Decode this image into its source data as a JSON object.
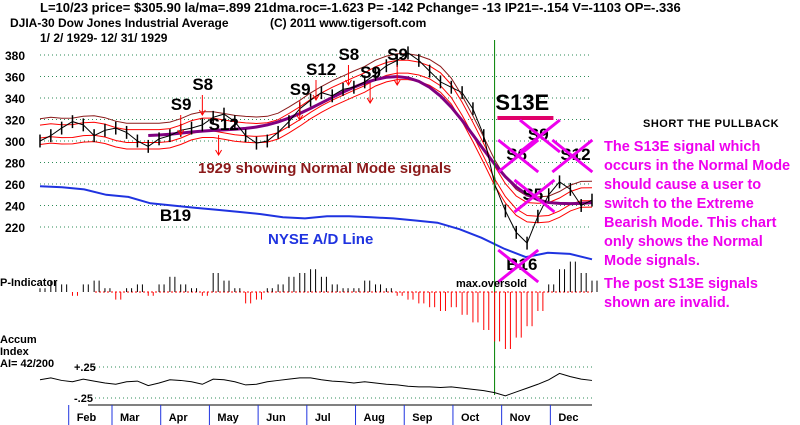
{
  "header": {
    "stats": "L=10/23  price= $305.90  la/ma=.899 21dma.roc=-1.623 P= -142 Pchange= -13 IP21=-.154 V=-1103 OP=-.336",
    "title": "DJIA-30  Dow Jones Industrial Average",
    "range": "1/ 2/ 1929- 12/ 31/ 1929",
    "copyright": "(C) 2011 www.tigersoft.com"
  },
  "annotations": {
    "normal_mode": "1929 showing Normal Mode signals",
    "ad_line": "NYSE A/D Line",
    "max_oversold": "max.oversold",
    "p_indicator": "P-Indicator",
    "accum1": "Accum",
    "accum2": "Index",
    "accum3": "AI= 42/200",
    "short_pullback": "SHORT THE PULLBACK",
    "note": "The S13E signal which occurs in the Normal Mode should cause a user to switch to the Extreme Bearish Mode. This chart only shows the Normal Mode signals.",
    "note2": "The post S13E signals shown are invalid."
  },
  "colors": {
    "price": "#000000",
    "band": "#ff0000",
    "band_outer": "#8b1a1a",
    "ma": "#800080",
    "ad": "#1f33e0",
    "note": "#ee00ee",
    "marker": "#008000"
  },
  "chart_data": {
    "type": "line",
    "title": "DJIA-30 Dow Jones Industrial Average 1929",
    "ylim": [
      200,
      390
    ],
    "yticks": [
      220,
      240,
      260,
      280,
      300,
      320,
      340,
      360,
      380
    ],
    "months": [
      "Feb",
      "Mar",
      "Apr",
      "May",
      "Jun",
      "Jul",
      "Aug",
      "Sep",
      "Oct",
      "Nov",
      "Dec"
    ],
    "month_weeks": [
      4.5,
      8.5,
      13,
      17.5,
      22,
      26.5,
      31,
      35.5,
      40,
      44.5,
      49
    ],
    "marker_week": 42,
    "price": [
      300,
      305,
      312,
      318,
      315,
      305,
      310,
      312,
      308,
      300,
      295,
      302,
      305,
      310,
      312,
      315,
      322,
      325,
      318,
      305,
      298,
      300,
      308,
      318,
      330,
      338,
      345,
      342,
      348,
      350,
      355,
      362,
      370,
      375,
      382,
      375,
      365,
      355,
      350,
      345,
      330,
      305,
      260,
      235,
      215,
      205,
      230,
      250,
      262,
      255,
      240,
      245
    ],
    "ad_line": [
      258,
      257,
      255,
      250,
      248,
      242,
      240,
      238,
      236,
      234,
      232,
      229,
      228,
      230,
      230,
      229,
      228,
      226,
      224,
      218,
      210,
      200,
      192,
      196,
      195,
      190
    ],
    "p_indicator": [
      0.1,
      0.3,
      0.2,
      -0.1,
      0.2,
      0.3,
      0.1,
      -0.2,
      0.1,
      0.2,
      -0.1,
      0.2,
      0.4,
      0.2,
      0.1,
      -0.1,
      0.5,
      0.3,
      0.1,
      -0.3,
      -0.2,
      0.1,
      0.2,
      0.4,
      0.5,
      0.6,
      0.4,
      0.2,
      0.1,
      0.1,
      0.3,
      0.2,
      0.1,
      -0.1,
      -0.2,
      -0.3,
      -0.4,
      -0.5,
      -0.4,
      -0.6,
      -0.8,
      -1.0,
      -1.3,
      -1.5,
      -1.2,
      -0.9,
      -0.5,
      0.2,
      0.6,
      0.8,
      0.5,
      0.3
    ],
    "accum": [
      0.05,
      0.08,
      0.04,
      0.02,
      0.06,
      0.03,
      0.0,
      -0.02,
      0.02,
      0.03,
      -0.04,
      0.0,
      0.05,
      0.04,
      0.02,
      -0.02,
      0.06,
      0.05,
      0.02,
      -0.03,
      -0.02,
      0.02,
      0.04,
      0.06,
      0.08,
      0.08,
      0.05,
      0.03,
      0.02,
      0.0,
      0.02,
      0.0,
      -0.02,
      -0.03,
      -0.05,
      -0.06,
      -0.06,
      -0.07,
      -0.06,
      -0.08,
      -0.1,
      -0.12,
      -0.15,
      -0.2,
      -0.14,
      -0.08,
      -0.02,
      0.05,
      0.15,
      0.1,
      0.06,
      0.04
    ],
    "accum_ticks": [
      "+.25",
      "-.25"
    ],
    "signals": [
      {
        "label": "S9",
        "week": 13,
        "valid": true
      },
      {
        "label": "S8",
        "week": 15,
        "valid": true
      },
      {
        "label": "S12",
        "week": 16.5,
        "valid": true
      },
      {
        "label": "S9",
        "week": 24,
        "valid": true
      },
      {
        "label": "S12",
        "week": 25.5,
        "valid": true
      },
      {
        "label": "S8",
        "week": 28.5,
        "valid": true
      },
      {
        "label": "S9",
        "week": 30.5,
        "valid": true
      },
      {
        "label": "S9",
        "week": 33,
        "valid": true
      },
      {
        "label": "S13E",
        "week": 43,
        "valid": true
      },
      {
        "label": "B19",
        "week": 12,
        "valid": true
      },
      {
        "label": "S6",
        "week": 44,
        "valid": false
      },
      {
        "label": "S9",
        "week": 46,
        "valid": false
      },
      {
        "label": "S12",
        "week": 49,
        "valid": false
      },
      {
        "label": "S5",
        "week": 45.5,
        "valid": false
      },
      {
        "label": "B16",
        "week": 44,
        "valid": false
      }
    ]
  }
}
